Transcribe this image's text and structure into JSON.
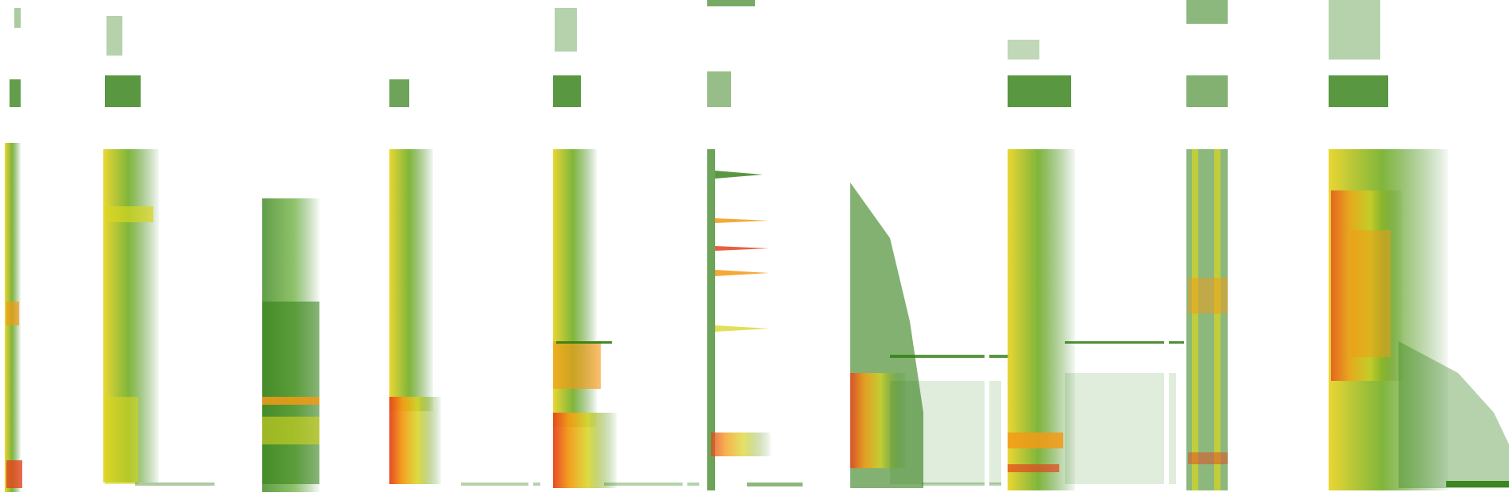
{
  "image": {
    "kind": "spectrogram-montage",
    "background_color": "#ffffff",
    "palette": {
      "low": "#2f7d12",
      "mid": "#d7d520",
      "high": "#f39a16",
      "peak": "#e5431c"
    },
    "panels_count": 11
  }
}
